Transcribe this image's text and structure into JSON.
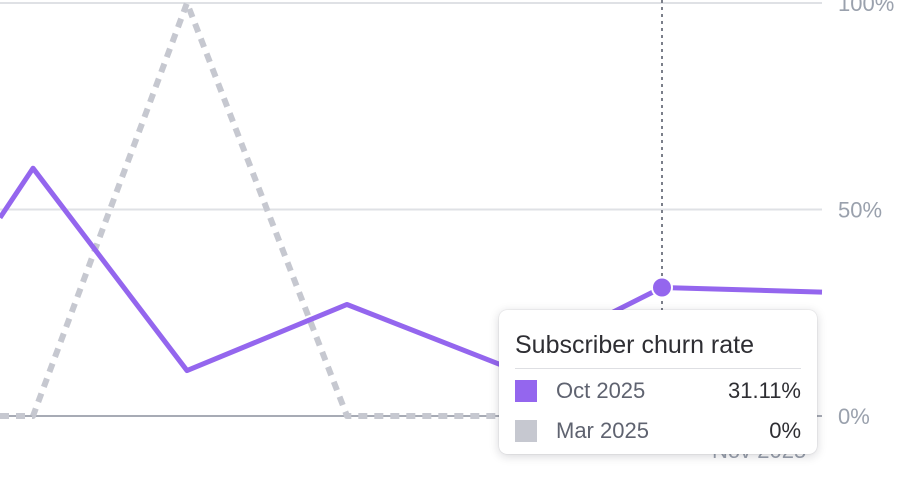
{
  "chart_data": {
    "type": "line",
    "title": "",
    "xlabel": "",
    "ylabel": "",
    "ylim": [
      0,
      100
    ],
    "y_ticks": [
      "0%",
      "50%",
      "100%"
    ],
    "x_tick_labels": [
      "Nov 2025"
    ],
    "grid": true,
    "series": [
      {
        "name": "Oct 2025",
        "color": "#9466ee",
        "style": "solid",
        "values": [
          48,
          60,
          11,
          27,
          12,
          31.11,
          30
        ]
      },
      {
        "name": "Mar 2025",
        "color": "#c6c8d0",
        "style": "dashed",
        "values": [
          0,
          0,
          100,
          0,
          0,
          0,
          0
        ]
      }
    ],
    "highlight_index": 5
  },
  "tooltip": {
    "title": "Subscriber churn rate",
    "rows": [
      {
        "label": "Oct 2025",
        "value": "31.11%",
        "color": "#9466ee"
      },
      {
        "label": "Mar 2025",
        "value": "0%",
        "color": "#c6c8d0"
      }
    ]
  }
}
